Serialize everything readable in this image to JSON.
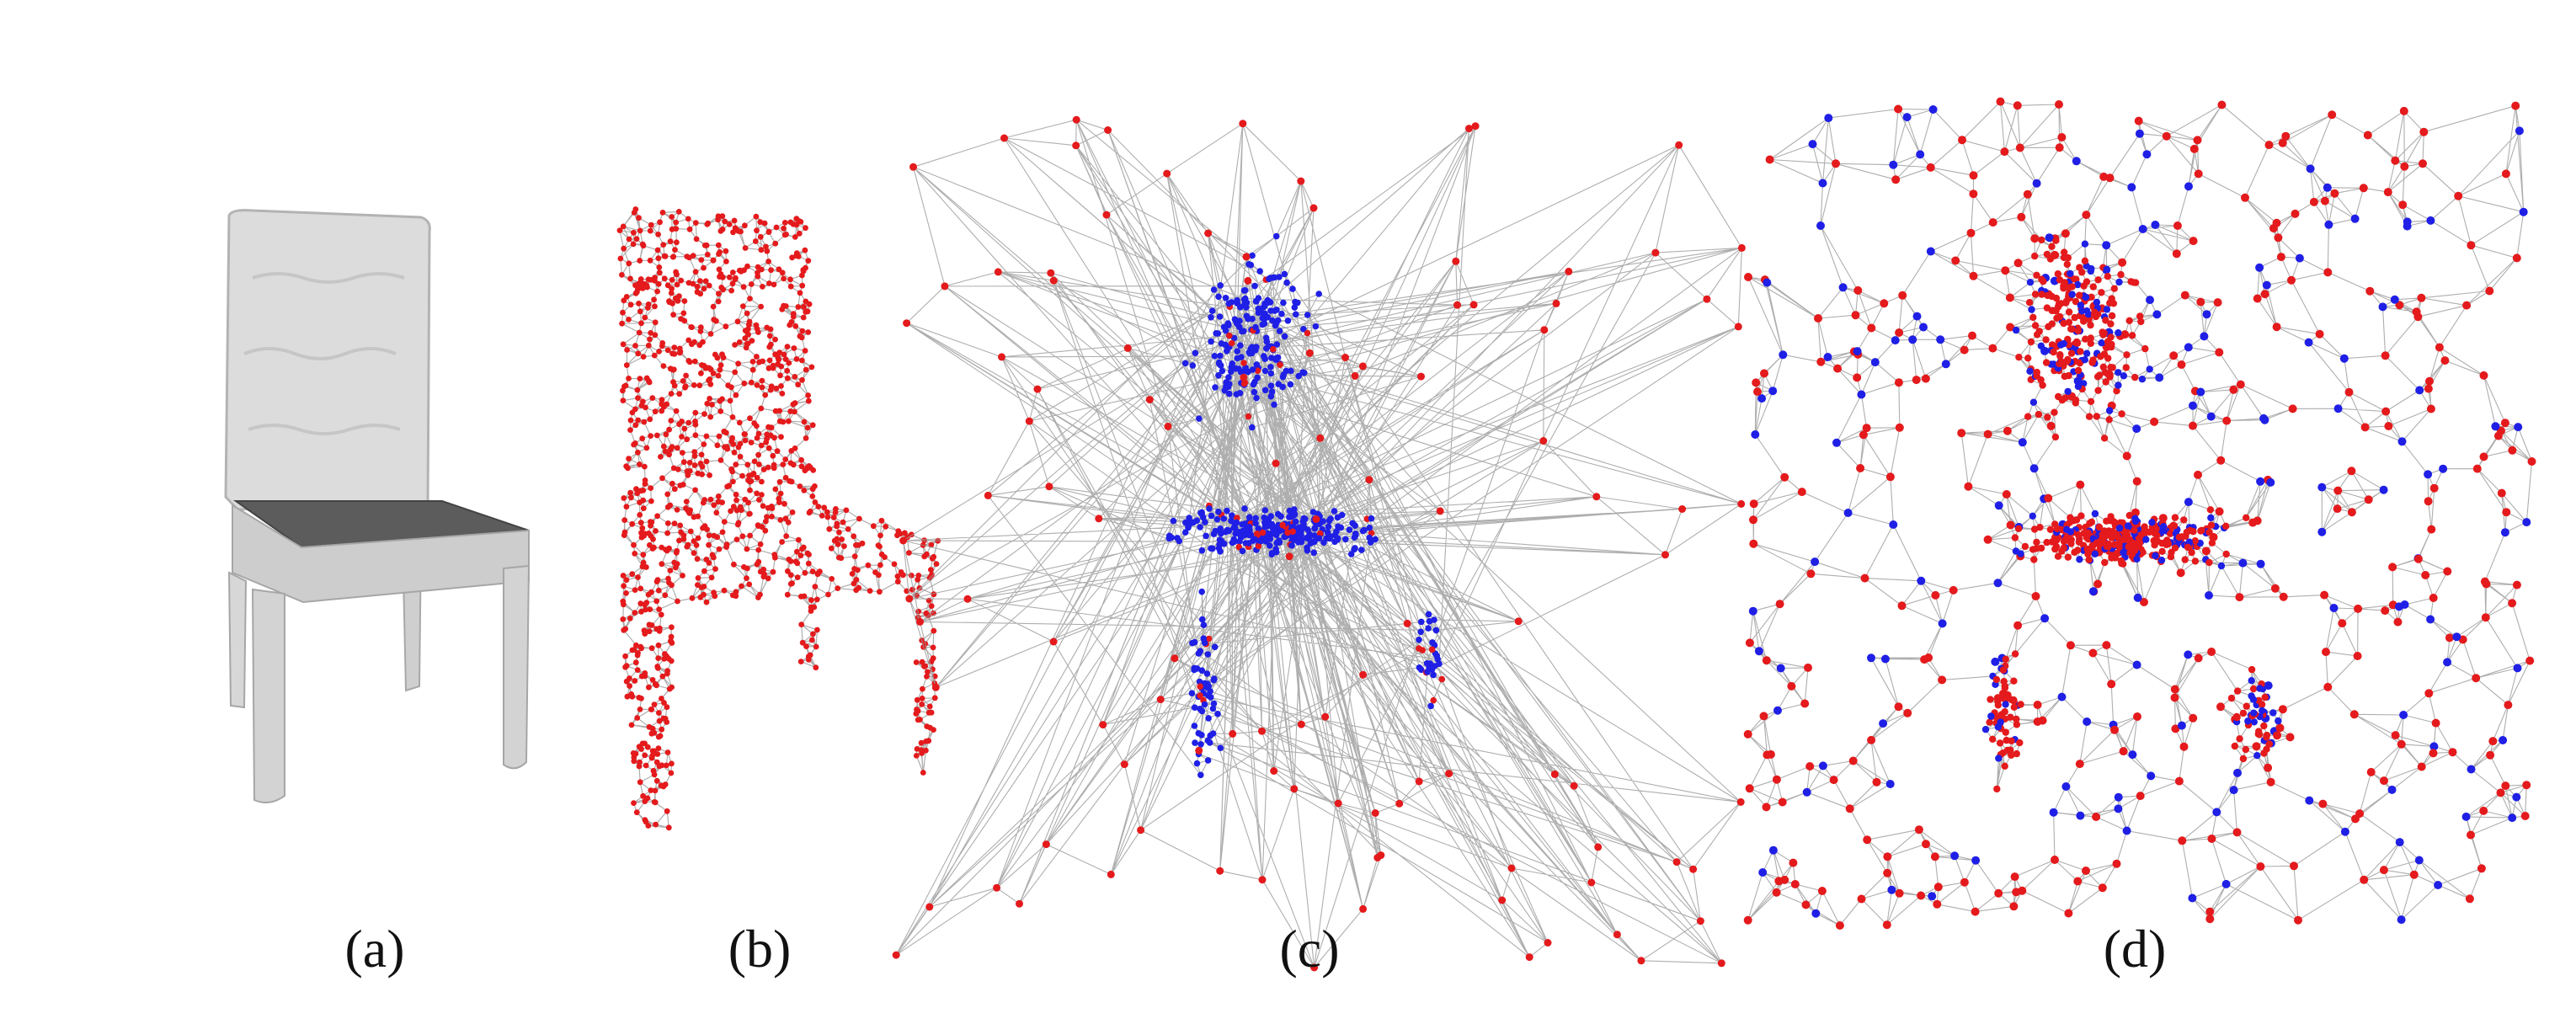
{
  "panels": [
    {
      "id": "a",
      "label": "(a)"
    },
    {
      "id": "b",
      "label": "(b)"
    },
    {
      "id": "c",
      "label": "(c)"
    },
    {
      "id": "d",
      "label": "(d)"
    }
  ],
  "colors": {
    "edge": "#9a9a9a",
    "node_red": "#e41a1c",
    "node_blue": "#1f1fe6",
    "chair_light": "#d9d9d9",
    "chair_mid": "#bfbfbf",
    "chair_seat": "#5a5a5a"
  }
}
